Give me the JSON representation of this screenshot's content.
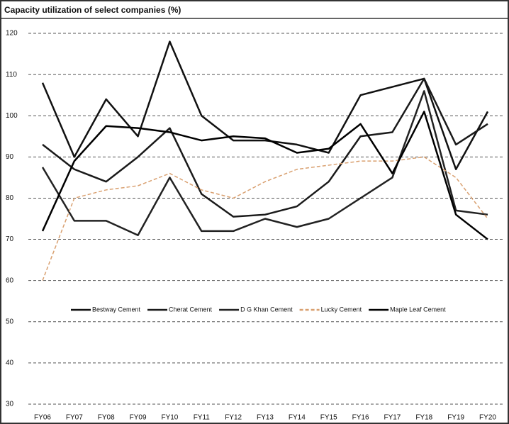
{
  "chart_data": {
    "type": "line",
    "title": "Capacity utilization of select companies (%)",
    "categories": [
      "FY06",
      "FY07",
      "FY08",
      "FY09",
      "FY10",
      "FY11",
      "FY12",
      "FY13",
      "FY14",
      "FY15",
      "FY16",
      "FY17",
      "FY18",
      "FY19",
      "FY20"
    ],
    "series": [
      {
        "name": "Bestway Cement",
        "color": "#111111",
        "dash": false,
        "values": [
          108,
          90,
          104,
          95,
          118,
          100,
          94,
          94,
          93,
          91,
          105,
          107,
          109,
          87,
          101
        ]
      },
      {
        "name": "Cherat Cement",
        "color": "#1a1a1a",
        "dash": false,
        "values": [
          93,
          87,
          84,
          90,
          97,
          81,
          75.5,
          76,
          78,
          84,
          95,
          96,
          109,
          93,
          98
        ]
      },
      {
        "name": "D G Khan Cement",
        "color": "#222222",
        "dash": false,
        "values": [
          87.5,
          74.5,
          74.5,
          71,
          85,
          72,
          72,
          75,
          73,
          75,
          80,
          85,
          106,
          77,
          76
        ]
      },
      {
        "name": "Lucky Cement",
        "color": "#d9a070",
        "dash": true,
        "values": [
          60,
          80,
          82,
          83,
          86,
          82,
          80,
          84,
          87,
          88,
          89,
          89,
          90,
          85,
          75
        ]
      },
      {
        "name": "Maple Leaf Cement",
        "color": "#000000",
        "dash": false,
        "values": [
          72,
          89,
          97.5,
          97,
          96,
          94,
          95,
          94.5,
          91,
          92,
          98,
          86,
          101,
          76,
          70
        ]
      }
    ],
    "ylim": [
      30,
      120
    ],
    "yticks": [
      30,
      40,
      50,
      60,
      70,
      80,
      90,
      100,
      110,
      120
    ],
    "grid": true,
    "legend": "center"
  }
}
